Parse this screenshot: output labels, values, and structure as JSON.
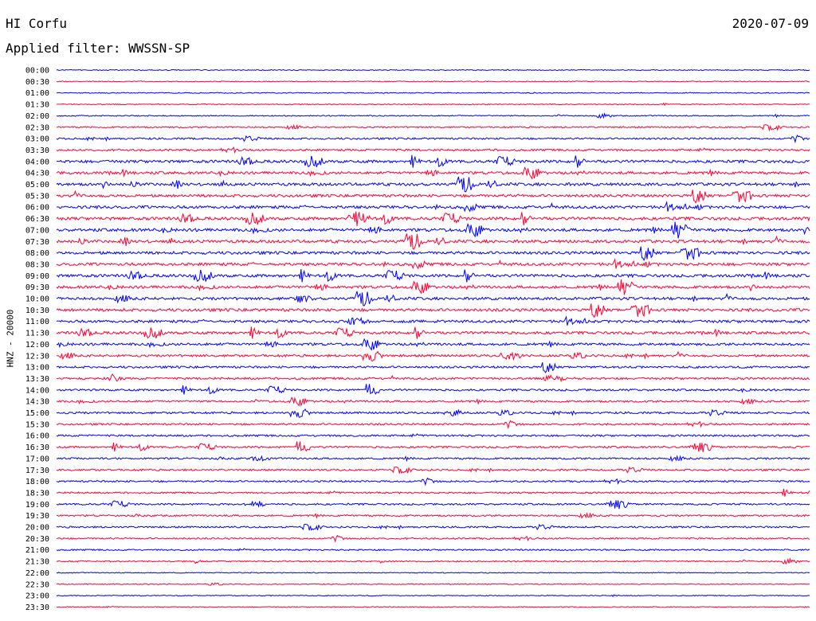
{
  "header": {
    "station": "HI Corfu",
    "date": "2020-07-09",
    "filter_label": "Applied filter: WWSSN-SP"
  },
  "chart_data": {
    "type": "line",
    "title": "HI Corfu",
    "subtitle": "Applied filter: WWSSN-SP",
    "ylabel": "HNZ - 20000",
    "xlabel": "",
    "grid": false,
    "legend": "none",
    "trace_colors": [
      "#0000ff",
      "#ff0033"
    ],
    "categories": [
      "00:00",
      "00:30",
      "01:00",
      "01:30",
      "02:00",
      "02:30",
      "03:00",
      "03:30",
      "04:00",
      "04:30",
      "05:00",
      "05:30",
      "06:00",
      "06:30",
      "07:00",
      "07:30",
      "08:00",
      "08:30",
      "09:00",
      "09:30",
      "10:00",
      "10:30",
      "11:00",
      "11:30",
      "12:00",
      "12:30",
      "13:00",
      "13:30",
      "14:00",
      "14:30",
      "15:00",
      "15:30",
      "16:00",
      "16:30",
      "17:00",
      "17:30",
      "18:00",
      "18:30",
      "19:00",
      "19:30",
      "20:00",
      "20:30",
      "21:00",
      "21:30",
      "22:00",
      "22:30",
      "23:00",
      "23:30"
    ],
    "activity_level": [
      0.05,
      0.05,
      0.05,
      0.08,
      0.15,
      0.3,
      0.45,
      0.55,
      0.9,
      0.85,
      0.95,
      0.9,
      0.95,
      1.0,
      1.0,
      1.0,
      0.95,
      0.95,
      0.95,
      0.9,
      0.9,
      0.95,
      0.85,
      0.85,
      0.8,
      0.7,
      0.6,
      0.6,
      0.55,
      0.5,
      0.55,
      0.5,
      0.5,
      0.5,
      0.45,
      0.45,
      0.45,
      0.4,
      0.45,
      0.4,
      0.4,
      0.35,
      0.3,
      0.25,
      0.05,
      0.05,
      0.05,
      0.05
    ]
  }
}
